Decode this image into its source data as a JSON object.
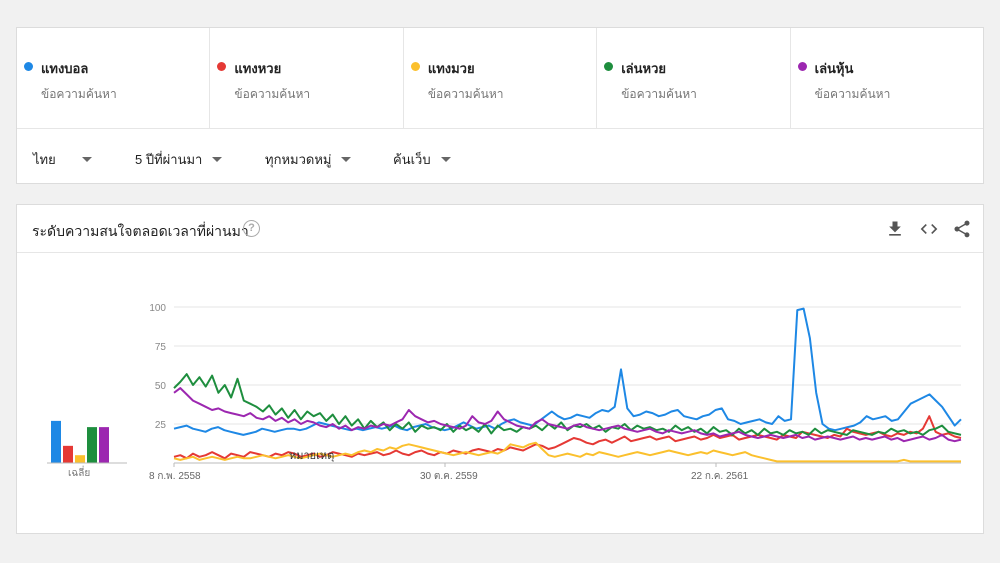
{
  "terms": [
    {
      "name": "แทงบอล",
      "sub": "ข้อความค้นหา",
      "color": "#1e88e5"
    },
    {
      "name": "แทงหวย",
      "sub": "ข้อความค้นหา",
      "color": "#e53935"
    },
    {
      "name": "แทงมวย",
      "sub": "ข้อความค้นหา",
      "color": "#fbc02d"
    },
    {
      "name": "เล่นหวย",
      "sub": "ข้อความค้นหา",
      "color": "#1e8e3e"
    },
    {
      "name": "เล่นหุ้น",
      "sub": "ข้อความค้นหา",
      "color": "#9c27b0"
    }
  ],
  "filters": {
    "region": "ไทย",
    "time": "5 ปีที่ผ่านมา",
    "category": "ทุกหมวดหมู่",
    "search_type": "ค้นเว็บ"
  },
  "chart_header": {
    "title": "ระดับความสนใจตลอดเวลาที่ผ่านมา",
    "help": "?",
    "icons": [
      "download-icon",
      "embed-icon",
      "share-icon"
    ]
  },
  "chart_data": {
    "type": "line",
    "yticks": [
      "100",
      "75",
      "50",
      "25"
    ],
    "ylim": [
      0,
      100
    ],
    "xticks": [
      "8 ก.พ. 2558",
      "30 ต.ค. 2559",
      "22 ก.ค. 2561"
    ],
    "annotation": "หมายเหตุ",
    "average_label": "เฉลี่ย",
    "averages": [
      27,
      11,
      5,
      23,
      23
    ],
    "series": [
      {
        "name": "แทงบอล",
        "color": "#1e88e5",
        "values": [
          22,
          23,
          24,
          22,
          21,
          20,
          22,
          23,
          21,
          20,
          19,
          18,
          19,
          20,
          22,
          21,
          20,
          21,
          22,
          22,
          21,
          22,
          24,
          26,
          25,
          24,
          23,
          22,
          21,
          22,
          21,
          22,
          23,
          22,
          23,
          24,
          22,
          21,
          23,
          24,
          25,
          23,
          22,
          21,
          22,
          24,
          26,
          24,
          22,
          23,
          24,
          22,
          25,
          27,
          28,
          26,
          25,
          24,
          27,
          30,
          33,
          30,
          28,
          29,
          31,
          30,
          29,
          32,
          34,
          33,
          36,
          60,
          35,
          30,
          31,
          33,
          32,
          30,
          31,
          33,
          34,
          30,
          29,
          28,
          30,
          31,
          34,
          35,
          28,
          27,
          25,
          26,
          27,
          28,
          26,
          25,
          30,
          27,
          28,
          98,
          99,
          80,
          45,
          25,
          22,
          21,
          22,
          23,
          24,
          26,
          30,
          28,
          29,
          30,
          27,
          28,
          33,
          38,
          40,
          42,
          44,
          40,
          36,
          30,
          24,
          28
        ]
      },
      {
        "name": "แทงหวย",
        "color": "#e53935",
        "values": [
          4,
          5,
          3,
          6,
          4,
          5,
          7,
          5,
          3,
          6,
          5,
          4,
          7,
          6,
          5,
          4,
          6,
          5,
          7,
          6,
          4,
          5,
          6,
          4,
          5,
          7,
          6,
          5,
          4,
          6,
          5,
          6,
          7,
          5,
          6,
          8,
          6,
          5,
          7,
          8,
          6,
          5,
          7,
          6,
          8,
          7,
          6,
          8,
          9,
          8,
          7,
          9,
          8,
          10,
          9,
          8,
          10,
          12,
          11,
          9,
          10,
          12,
          14,
          16,
          15,
          13,
          12,
          14,
          15,
          13,
          15,
          17,
          14,
          15,
          16,
          17,
          15,
          16,
          17,
          14,
          15,
          16,
          17,
          15,
          16,
          18,
          16,
          17,
          18,
          15,
          16,
          17,
          18,
          17,
          16,
          15,
          18,
          17,
          16,
          20,
          19,
          18,
          17,
          16,
          18,
          17,
          22,
          20,
          19,
          18,
          19,
          20,
          18,
          17,
          19,
          18,
          20,
          19,
          22,
          30,
          20,
          18,
          19,
          17,
          16
        ]
      },
      {
        "name": "แทงมวย",
        "color": "#fbc02d",
        "values": [
          3,
          2,
          3,
          4,
          2,
          3,
          4,
          3,
          2,
          3,
          4,
          3,
          3,
          4,
          5,
          4,
          3,
          4,
          5,
          4,
          3,
          4,
          5,
          6,
          5,
          4,
          5,
          6,
          5,
          7,
          8,
          7,
          9,
          8,
          10,
          9,
          11,
          12,
          11,
          10,
          9,
          8,
          7,
          6,
          5,
          6,
          7,
          6,
          5,
          6,
          7,
          6,
          8,
          12,
          11,
          10,
          12,
          13,
          9,
          5,
          4,
          5,
          6,
          5,
          4,
          6,
          5,
          7,
          6,
          5,
          4,
          5,
          6,
          7,
          6,
          5,
          6,
          7,
          8,
          7,
          6,
          5,
          6,
          7,
          6,
          8,
          7,
          6,
          5,
          6,
          7,
          5,
          4,
          3,
          2,
          1,
          1,
          1,
          1,
          1,
          1,
          1,
          1,
          1,
          1,
          1,
          1,
          1,
          1,
          1,
          1,
          1,
          1,
          1,
          1,
          2,
          1,
          1,
          1,
          1,
          1,
          1,
          1,
          1,
          1
        ]
      },
      {
        "name": "เล่นหวย",
        "color": "#1e8e3e",
        "values": [
          48,
          52,
          57,
          50,
          55,
          49,
          56,
          45,
          50,
          42,
          54,
          40,
          38,
          36,
          33,
          37,
          31,
          35,
          29,
          34,
          28,
          33,
          30,
          32,
          27,
          31,
          25,
          30,
          24,
          28,
          22,
          27,
          23,
          26,
          21,
          25,
          22,
          26,
          20,
          24,
          22,
          23,
          21,
          25,
          20,
          24,
          21,
          23,
          20,
          25,
          19,
          24,
          21,
          22,
          20,
          23,
          22,
          24,
          21,
          25,
          22,
          26,
          21,
          24,
          23,
          25,
          22,
          24,
          20,
          23,
          22,
          25,
          21,
          24,
          22,
          23,
          21,
          22,
          20,
          24,
          21,
          23,
          20,
          22,
          19,
          23,
          20,
          21,
          18,
          22,
          19,
          21,
          18,
          22,
          19,
          20,
          18,
          21,
          19,
          20,
          18,
          22,
          19,
          21,
          20,
          19,
          18,
          21,
          20,
          19,
          18,
          20,
          19,
          22,
          20,
          21,
          19,
          20,
          18,
          21,
          22,
          24,
          20,
          19,
          18
        ]
      },
      {
        "name": "เล่นหุ้น",
        "color": "#9c27b0",
        "values": [
          45,
          48,
          44,
          40,
          38,
          36,
          34,
          35,
          33,
          32,
          31,
          30,
          32,
          29,
          28,
          30,
          27,
          29,
          26,
          28,
          25,
          27,
          26,
          24,
          23,
          25,
          22,
          24,
          21,
          23,
          22,
          24,
          23,
          25,
          24,
          26,
          28,
          34,
          30,
          28,
          26,
          27,
          25,
          24,
          23,
          22,
          24,
          30,
          26,
          25,
          27,
          33,
          28,
          26,
          24,
          23,
          22,
          26,
          28,
          25,
          24,
          23,
          22,
          24,
          25,
          23,
          22,
          21,
          22,
          23,
          24,
          22,
          21,
          20,
          21,
          22,
          20,
          19,
          21,
          20,
          19,
          20,
          21,
          19,
          18,
          19,
          17,
          18,
          19,
          20,
          18,
          17,
          16,
          17,
          18,
          17,
          16,
          17,
          18,
          16,
          17,
          15,
          16,
          17,
          16,
          15,
          16,
          17,
          15,
          16,
          15,
          16,
          17,
          15,
          16,
          14,
          15,
          16,
          17,
          15,
          16,
          18,
          15,
          14,
          15
        ]
      }
    ]
  }
}
